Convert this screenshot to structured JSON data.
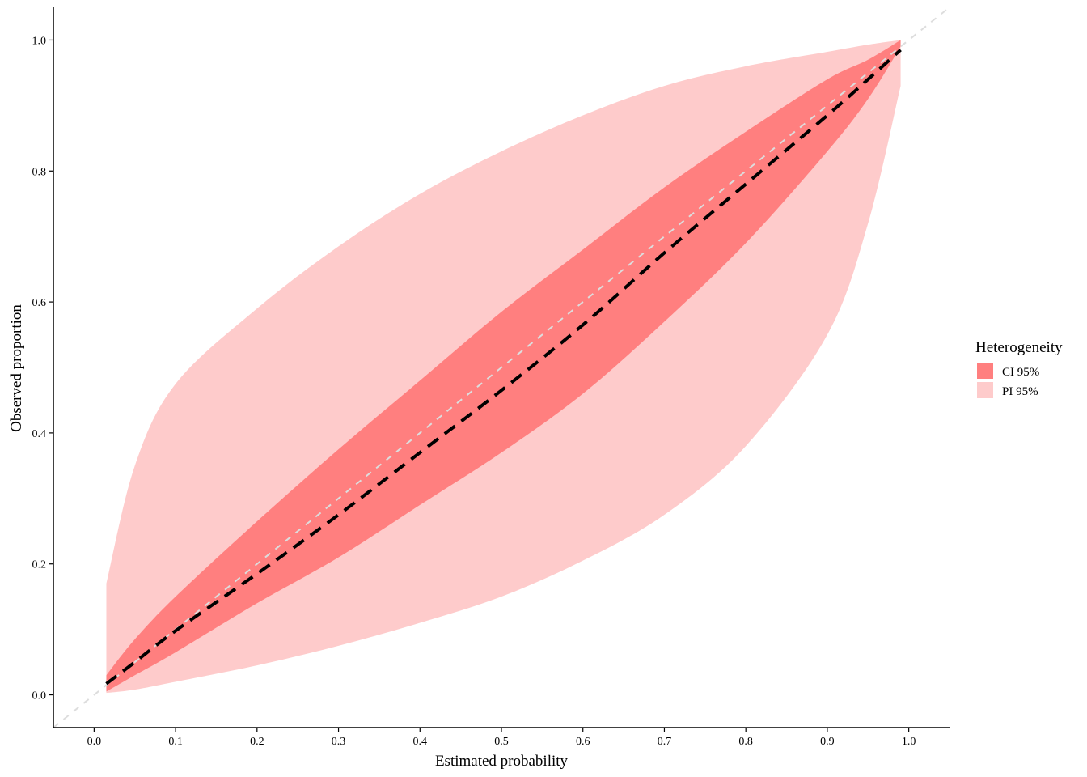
{
  "chart_data": {
    "type": "area",
    "title": "",
    "xlabel": "Estimated probability",
    "ylabel": "Observed proportion",
    "xlim": [
      -0.05,
      1.05
    ],
    "ylim": [
      -0.05,
      1.05
    ],
    "x_ticks": [
      "0.0",
      "0.1",
      "0.2",
      "0.3",
      "0.4",
      "0.5",
      "0.6",
      "0.7",
      "0.8",
      "0.9",
      "1.0"
    ],
    "x_tick_values": [
      0,
      0.1,
      0.2,
      0.3,
      0.4,
      0.5,
      0.6,
      0.7,
      0.8,
      0.9,
      1.0
    ],
    "y_ticks": [
      "0.0",
      "0.2",
      "0.4",
      "0.6",
      "0.8",
      "1.0"
    ],
    "y_tick_values": [
      0,
      0.2,
      0.4,
      0.6,
      0.8,
      1.0
    ],
    "grid": false,
    "legend": {
      "title": "Heterogeneity",
      "position": "right",
      "items": [
        {
          "label": "CI 95%",
          "color": "#ff7f7f"
        },
        {
          "label": "PI 95%",
          "color": "#fecbcb"
        }
      ]
    },
    "x": [
      0.015,
      0.05,
      0.1,
      0.2,
      0.3,
      0.4,
      0.5,
      0.6,
      0.7,
      0.8,
      0.9,
      0.95,
      0.99
    ],
    "series": [
      {
        "name": "CI 95%",
        "kind": "band",
        "lower": [
          0.005,
          0.03,
          0.065,
          0.14,
          0.21,
          0.29,
          0.37,
          0.46,
          0.57,
          0.69,
          0.83,
          0.91,
          0.99
        ],
        "upper": [
          0.03,
          0.085,
          0.15,
          0.265,
          0.375,
          0.48,
          0.585,
          0.68,
          0.775,
          0.86,
          0.94,
          0.97,
          1.0
        ]
      },
      {
        "name": "PI 95%",
        "kind": "band",
        "lower": [
          0.003,
          0.008,
          0.02,
          0.045,
          0.075,
          0.11,
          0.15,
          0.205,
          0.275,
          0.38,
          0.55,
          0.72,
          0.93
        ],
        "upper": [
          0.17,
          0.35,
          0.475,
          0.59,
          0.685,
          0.765,
          0.83,
          0.885,
          0.93,
          0.96,
          0.982,
          0.993,
          1.0
        ]
      },
      {
        "name": "",
        "kind": "line",
        "style": "dashed-thick",
        "y": [
          0.017,
          0.05,
          0.098,
          0.185,
          0.275,
          0.37,
          0.465,
          0.565,
          0.675,
          0.78,
          0.885,
          0.94,
          0.985
        ]
      },
      {
        "name": "",
        "kind": "reference-line",
        "style": "dashed-light",
        "x": [
          -0.05,
          1.05
        ],
        "y": [
          -0.05,
          1.05
        ]
      }
    ],
    "colors": {
      "ci": "#ff7f7f",
      "pi": "#fecbcb",
      "calibration_line": "#000000",
      "reference_line": "#dddddd"
    }
  }
}
